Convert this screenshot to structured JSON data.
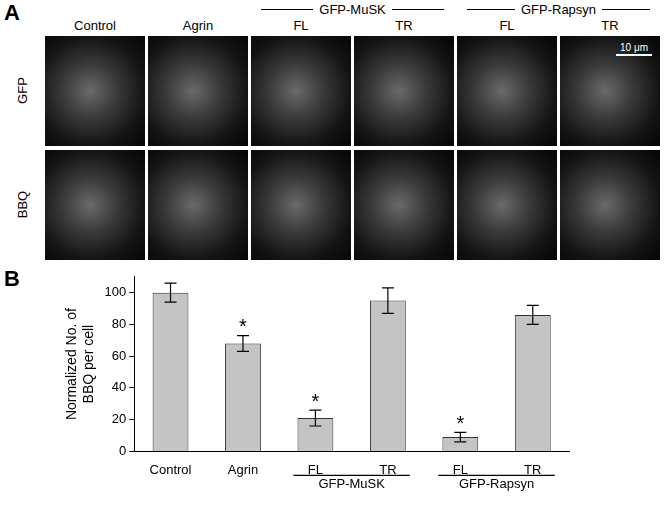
{
  "panel_a": {
    "label": "A",
    "columns": [
      "Control",
      "Agrin",
      "FL",
      "TR",
      "FL",
      "TR"
    ],
    "column_groups": [
      null,
      null,
      "GFP-MuSK",
      "GFP-MuSK",
      "GFP-Rapsyn",
      "GFP-Rapsyn"
    ],
    "rows": [
      "GFP",
      "BBQ"
    ],
    "scale_bar": "10 μm"
  },
  "chart_data": {
    "type": "bar",
    "panel_label": "B",
    "categories": [
      "Control",
      "Agrin",
      "FL",
      "TR",
      "FL",
      "TR"
    ],
    "category_groups": [
      null,
      null,
      "GFP-MuSK",
      "GFP-MuSK",
      "GFP-Rapsyn",
      "GFP-Rapsyn"
    ],
    "values": [
      100,
      68,
      21,
      95,
      9,
      86
    ],
    "errors": [
      6,
      5,
      5,
      8,
      3,
      6
    ],
    "annotations": [
      null,
      "*",
      "*",
      null,
      "*",
      null
    ],
    "y_label": [
      "Normalized No. of",
      "BBQ per cell"
    ],
    "color": "#c4c4c4",
    "ylim": [
      0,
      110
    ],
    "yticks": [
      0,
      20,
      40,
      60,
      80,
      100
    ],
    "grid": false
  }
}
